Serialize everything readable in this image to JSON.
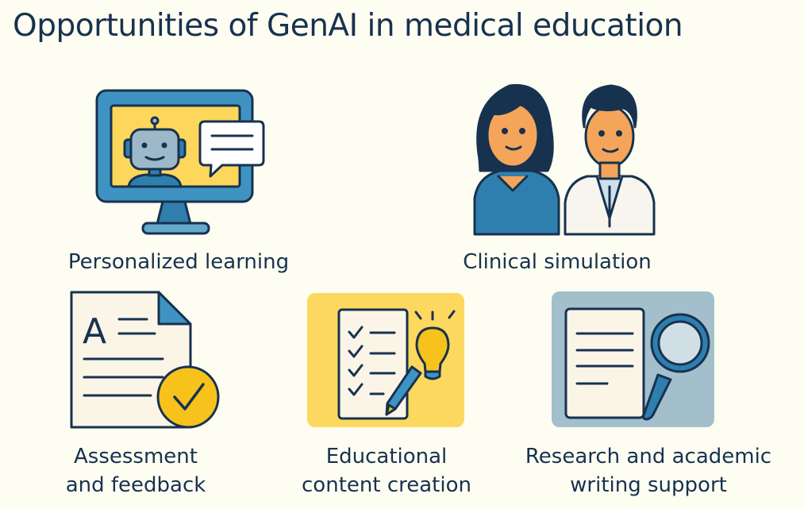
{
  "title": "Opportunities of GenAI in medical education",
  "items": [
    {
      "label_lines": [
        "Personalized learning"
      ],
      "icon": "computer-robot-chat-icon"
    },
    {
      "label_lines": [
        "Clinical simulation"
      ],
      "icon": "patient-doctor-icon"
    },
    {
      "label_lines": [
        "Assessment",
        "and feedback"
      ],
      "icon": "document-checkmark-icon"
    },
    {
      "label_lines": [
        "Educational",
        "content creation"
      ],
      "icon": "checklist-lightbulb-icon"
    },
    {
      "label_lines": [
        "Research and academic",
        "writing support"
      ],
      "icon": "document-magnifier-icon"
    }
  ],
  "colors": {
    "background": "#fefdf2",
    "navy": "#17324f",
    "blue": "#3a8dbb",
    "yellow": "#fdd85e",
    "gold": "#f7c21b",
    "slate": "#a3bfcc"
  }
}
